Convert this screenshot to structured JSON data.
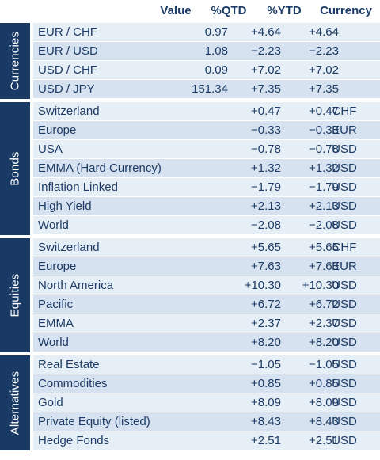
{
  "headers": {
    "value": "Value",
    "qtd": "%QTD",
    "ytd": "%YTD",
    "currency": "Currency"
  },
  "sections": [
    {
      "label": "Currencies",
      "rows": [
        {
          "name": "EUR / CHF",
          "value": "0.97",
          "qtd": "+4.64",
          "ytd": "+4.64",
          "currency": ""
        },
        {
          "name": "EUR / USD",
          "value": "1.08",
          "qtd": "−2.23",
          "ytd": "−2.23",
          "currency": ""
        },
        {
          "name": "USD / CHF",
          "value": "0.09",
          "qtd": "+7.02",
          "ytd": "+7.02",
          "currency": ""
        },
        {
          "name": "USD / JPY",
          "value": "151.34",
          "qtd": "+7.35",
          "ytd": "+7.35",
          "currency": ""
        }
      ]
    },
    {
      "label": "Bonds",
      "rows": [
        {
          "name": "Switzerland",
          "value": "",
          "qtd": "+0.47",
          "ytd": "+0.47",
          "currency": "CHF"
        },
        {
          "name": "Europe",
          "value": "",
          "qtd": "−0.33",
          "ytd": "−0.33",
          "currency": "EUR"
        },
        {
          "name": "USA",
          "value": "",
          "qtd": "−0.78",
          "ytd": "−0.78",
          "currency": "USD"
        },
        {
          "name": "EMMA (Hard Currency)",
          "value": "",
          "qtd": "+1.32",
          "ytd": "+1.32",
          "currency": "USD"
        },
        {
          "name": "Inflation Linked",
          "value": "",
          "qtd": "−1.79",
          "ytd": "−1.79",
          "currency": "USD"
        },
        {
          "name": "High Yield",
          "value": "",
          "qtd": "+2.13",
          "ytd": "+2.13",
          "currency": "USD"
        },
        {
          "name": "World",
          "value": "",
          "qtd": "−2.08",
          "ytd": "−2.08",
          "currency": "USD"
        }
      ]
    },
    {
      "label": "Equities",
      "rows": [
        {
          "name": "Switzerland",
          "value": "",
          "qtd": "+5.65",
          "ytd": "+5.65",
          "currency": "CHF"
        },
        {
          "name": "Europe",
          "value": "",
          "qtd": "+7.63",
          "ytd": "+7.63",
          "currency": "EUR"
        },
        {
          "name": "North America",
          "value": "",
          "qtd": "+10.30",
          "ytd": "+10.30",
          "currency": "USD"
        },
        {
          "name": "Pacific",
          "value": "",
          "qtd": "+6.72",
          "ytd": "+6.72",
          "currency": "USD"
        },
        {
          "name": "EMMA",
          "value": "",
          "qtd": "+2.37",
          "ytd": "+2.37",
          "currency": "USD"
        },
        {
          "name": "World",
          "value": "",
          "qtd": "+8.20",
          "ytd": "+8.20",
          "currency": "USD"
        }
      ]
    },
    {
      "label": "Alternatives",
      "rows": [
        {
          "name": "Real Estate",
          "value": "",
          "qtd": "−1.05",
          "ytd": "−1.05",
          "currency": "USD"
        },
        {
          "name": "Commodities",
          "value": "",
          "qtd": "+0.85",
          "ytd": "+0.85",
          "currency": "USD"
        },
        {
          "name": "Gold",
          "value": "",
          "qtd": "+8.09",
          "ytd": "+8.09",
          "currency": "USD"
        },
        {
          "name": "Private Equity (listed)",
          "value": "",
          "qtd": "+8.43",
          "ytd": "+8.43",
          "currency": "USD"
        },
        {
          "name": "Hedge Fonds",
          "value": "",
          "qtd": "+2.51",
          "ytd": "+2.51",
          "currency": "USD"
        }
      ]
    }
  ]
}
